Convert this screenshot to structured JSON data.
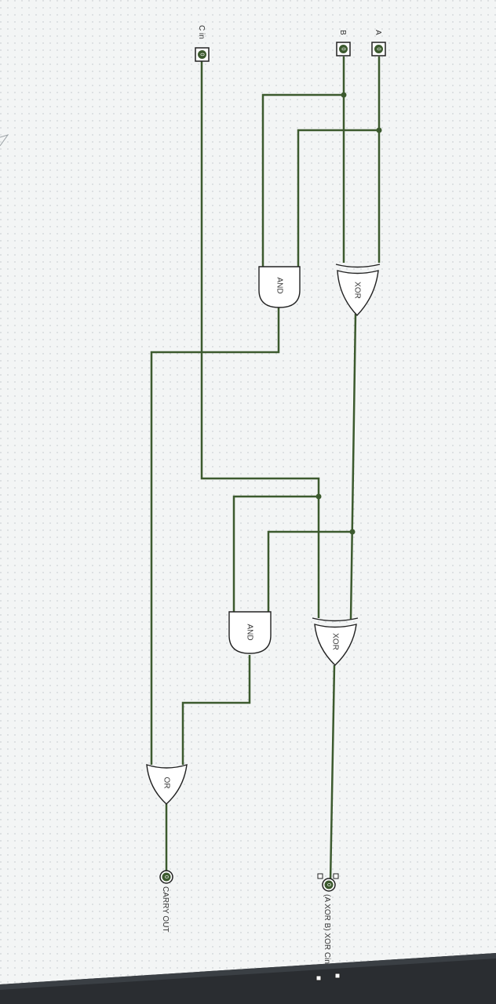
{
  "inputs": {
    "a": {
      "label": "A",
      "value": "0"
    },
    "b": {
      "label": "B",
      "value": "0"
    },
    "cin": {
      "label": "C in",
      "value": "0"
    }
  },
  "gates": {
    "xor1": "XOR",
    "and1": "AND",
    "xor2": "XOR",
    "and2": "AND",
    "or1": "OR"
  },
  "outputs": {
    "sum": {
      "label": "(A XOR B) XOR Cin",
      "value": "0"
    },
    "carry": {
      "label": "CARRY OUT",
      "value": "0"
    }
  },
  "colors": {
    "wire": "#3c5a2e",
    "canvas": "#f3f5f5",
    "bezel": "#2a2d31"
  }
}
